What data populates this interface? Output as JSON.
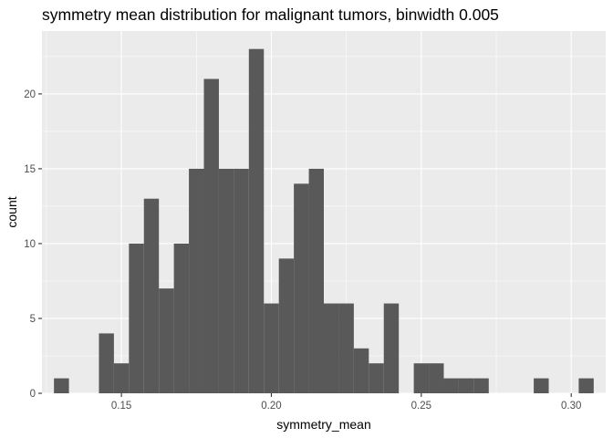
{
  "chart_data": {
    "type": "bar",
    "title": "symmetry mean distribution for malignant tumors, binwidth 0.005",
    "xlabel": "symmetry_mean",
    "ylabel": "count",
    "binwidth": 0.005,
    "x": [
      0.13,
      0.135,
      0.14,
      0.145,
      0.15,
      0.155,
      0.16,
      0.165,
      0.17,
      0.175,
      0.18,
      0.185,
      0.19,
      0.195,
      0.2,
      0.205,
      0.21,
      0.215,
      0.22,
      0.225,
      0.23,
      0.235,
      0.24,
      0.245,
      0.25,
      0.255,
      0.26,
      0.265,
      0.27,
      0.275,
      0.28,
      0.285,
      0.29,
      0.295,
      0.3,
      0.305
    ],
    "values": [
      1,
      0,
      0,
      4,
      2,
      10,
      13,
      7,
      10,
      15,
      21,
      15,
      15,
      23,
      6,
      9,
      14,
      15,
      6,
      6,
      3,
      2,
      6,
      0,
      2,
      2,
      1,
      1,
      1,
      0,
      0,
      0,
      1,
      0,
      0,
      1
    ],
    "xlim": [
      0.1235,
      0.3115
    ],
    "ylim": [
      0,
      24.2
    ],
    "x_ticks": [
      0.15,
      0.2,
      0.25,
      0.3
    ],
    "x_tick_labels": [
      "0.15",
      "0.20",
      "0.25",
      "0.30"
    ],
    "y_ticks": [
      0,
      5,
      10,
      15,
      20
    ],
    "y_tick_labels": [
      "0",
      "5",
      "10",
      "15",
      "20"
    ],
    "grid": true,
    "panel_color": "#ebebeb",
    "grid_color": "#ffffff",
    "bar_color": "#595959"
  }
}
